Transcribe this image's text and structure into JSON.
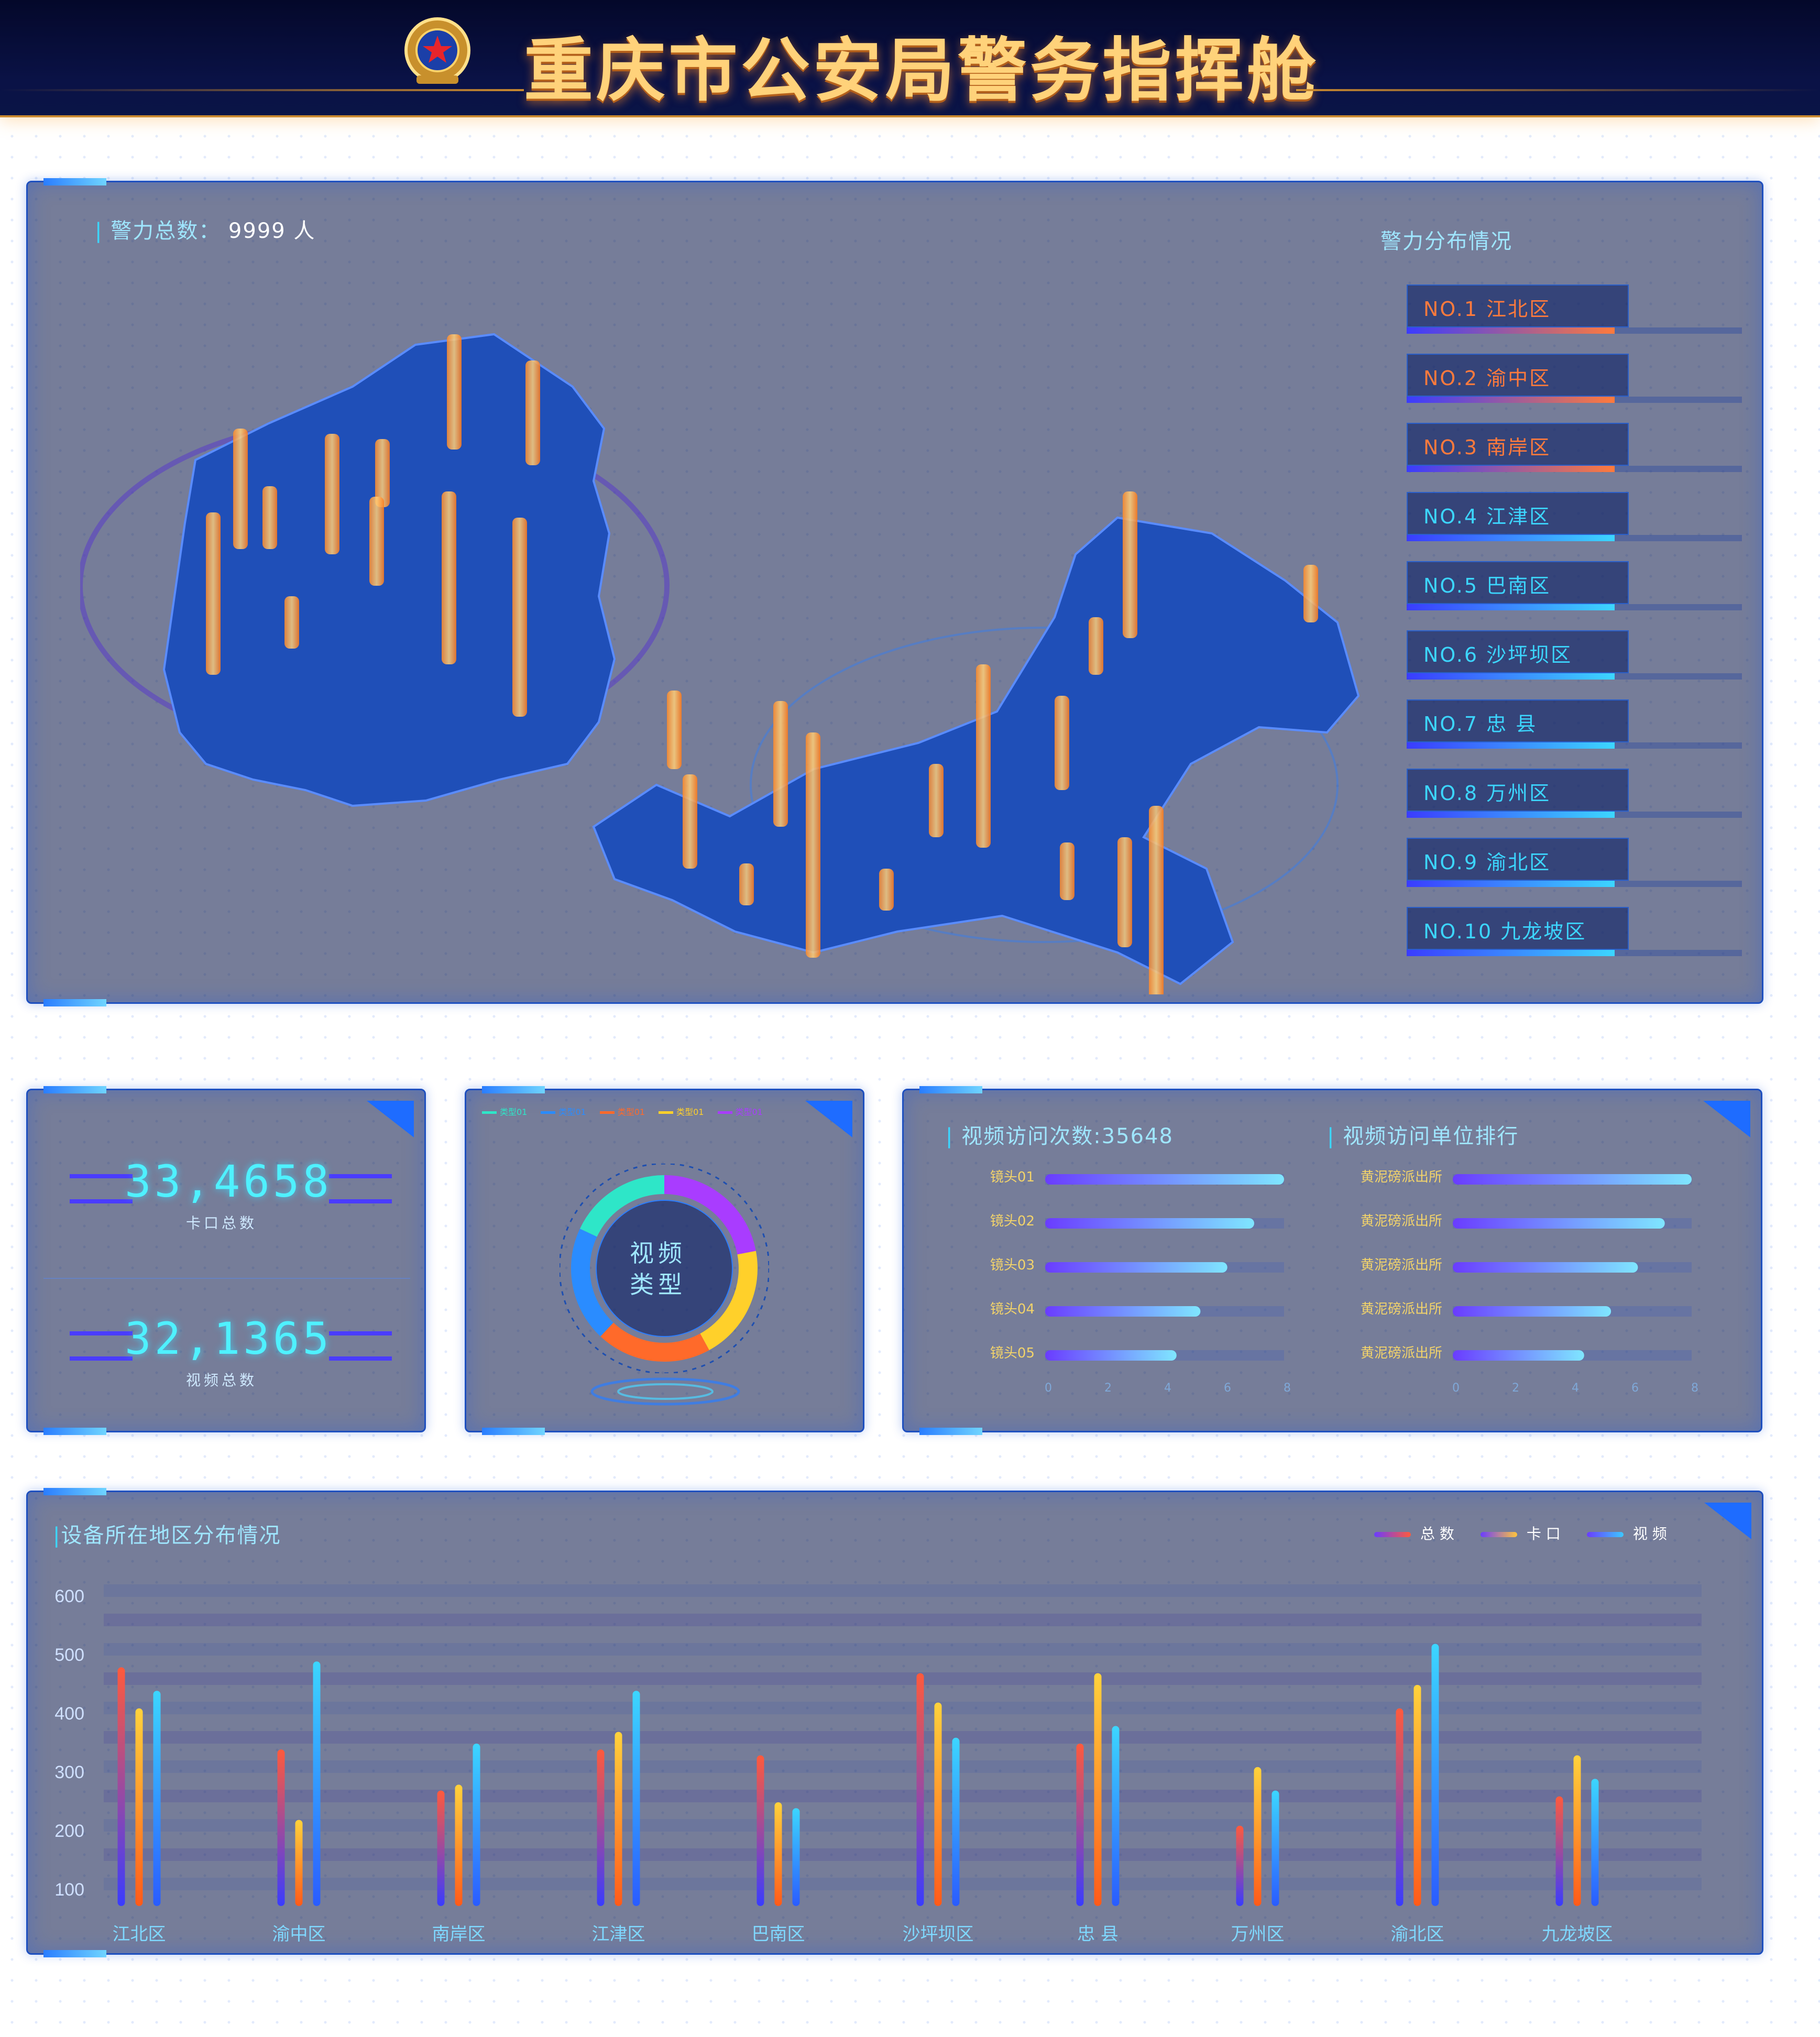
{
  "header": {
    "title": "重庆市公安局警务指挥舱"
  },
  "map_panel": {
    "total_label": "警力总数：",
    "total_value": "9999 人",
    "dist_title": "警力分布情况",
    "ranks": [
      {
        "label": "NO.1  江北区",
        "level": 0.62,
        "color": "#ff7a3c"
      },
      {
        "label": "NO.2  渝中区",
        "level": 0.62,
        "color": "#ff7a3c"
      },
      {
        "label": "NO.3  南岸区",
        "level": 0.62,
        "color": "#ff7a3c"
      },
      {
        "label": "NO.4  江津区",
        "level": 0.62,
        "color": "#3cd6ff"
      },
      {
        "label": "NO.5  巴南区",
        "level": 0.62,
        "color": "#3cd6ff"
      },
      {
        "label": "NO.6  沙坪坝区",
        "level": 0.62,
        "color": "#3cd6ff"
      },
      {
        "label": "NO.7  忠    县",
        "level": 0.62,
        "color": "#3cd6ff"
      },
      {
        "label": "NO.8  万州区",
        "level": 0.62,
        "color": "#3cd6ff"
      },
      {
        "label": "NO.9  渝北区",
        "level": 0.62,
        "color": "#3cd6ff"
      },
      {
        "label": "NO.10  九龙坡区",
        "level": 0.62,
        "color": "#3cd6ff"
      }
    ]
  },
  "stats_panel": {
    "checkpoint_value": "33,4658",
    "checkpoint_label": "卡口总数",
    "video_value": "32,1365",
    "video_label": "视频总数"
  },
  "donut_panel": {
    "center_label_1": "视频",
    "center_label_2": "类型",
    "legend": [
      {
        "name": "类型01",
        "color": "#2ee6c8"
      },
      {
        "name": "类型01",
        "color": "#2a8cff"
      },
      {
        "name": "类型01",
        "color": "#ff6a2a"
      },
      {
        "name": "类型01",
        "color": "#ffd02a"
      },
      {
        "name": "类型01",
        "color": "#a93cff"
      }
    ]
  },
  "access_panel": {
    "title_left": "视频访问次数:35648",
    "title_right": "视频访问单位排行"
  },
  "district_panel": {
    "title": "设备所在地区分布情况",
    "legend": [
      {
        "name": "总 数",
        "color": "#ff5a3c"
      },
      {
        "name": "卡 口",
        "color": "#ffc43c"
      },
      {
        "name": "视 频",
        "color": "#3cc8ff"
      }
    ]
  },
  "chart_data": [
    {
      "type": "bar",
      "orientation": "horizontal",
      "categories": [
        "镜头01",
        "镜头02",
        "镜头03",
        "镜头04",
        "镜头05"
      ],
      "values": [
        8,
        7,
        6.1,
        5.2,
        4.4
      ],
      "xticks": [
        "0",
        "2",
        "4",
        "6",
        "8"
      ],
      "xlim": [
        0,
        8
      ]
    },
    {
      "type": "bar",
      "orientation": "horizontal",
      "categories": [
        "黄泥磅派出所",
        "黄泥磅派出所",
        "黄泥磅派出所",
        "黄泥磅派出所",
        "黄泥磅派出所"
      ],
      "values": [
        8,
        7.1,
        6.2,
        5.3,
        4.4
      ],
      "xticks": [
        "0",
        "2",
        "4",
        "6",
        "8"
      ],
      "xlim": [
        0,
        8
      ]
    },
    {
      "type": "bar",
      "categories": [
        "江北区",
        "渝中区",
        "南岸区",
        "江津区",
        "巴南区",
        "沙坪坝区",
        "忠    县",
        "万州区",
        "渝北区",
        "九龙坡区"
      ],
      "series": [
        {
          "name": "总 数",
          "values": [
            480,
            340,
            270,
            340,
            330,
            470,
            350,
            210,
            410,
            260
          ]
        },
        {
          "name": "卡 口",
          "values": [
            410,
            220,
            280,
            370,
            250,
            420,
            470,
            310,
            450,
            330
          ]
        },
        {
          "name": "视 频",
          "values": [
            440,
            490,
            350,
            440,
            240,
            360,
            380,
            270,
            520,
            290
          ]
        }
      ],
      "yticks": [
        "100",
        "200",
        "300",
        "400",
        "500",
        "600"
      ],
      "ylim": [
        100,
        600
      ]
    },
    {
      "type": "pie",
      "title": "视频类型",
      "categories": [
        "类型01",
        "类型01",
        "类型01",
        "类型01",
        "类型01"
      ],
      "values": [
        22,
        20,
        20,
        20,
        18
      ]
    }
  ]
}
